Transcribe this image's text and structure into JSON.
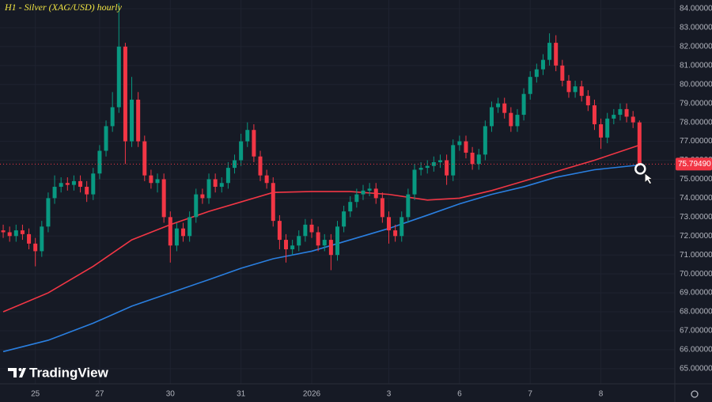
{
  "chart_data": {
    "type": "candlestick",
    "title": "H1 - Silver (XAG/USD) hourly",
    "brand": "TradingView",
    "up_color": "#089981",
    "down_color": "#f23645",
    "grid": true,
    "xlim": [
      -0.5,
      104.5
    ],
    "ylim": [
      64.2,
      84.46
    ],
    "xticks": [
      {
        "value": 5,
        "label": "25"
      },
      {
        "value": 15,
        "label": "27"
      },
      {
        "value": 26,
        "label": "30"
      },
      {
        "value": 37,
        "label": "31"
      },
      {
        "value": 48,
        "label": "2026"
      },
      {
        "value": 60,
        "label": "3"
      },
      {
        "value": 71,
        "label": "6"
      },
      {
        "value": 82,
        "label": "7"
      },
      {
        "value": 93,
        "label": "8"
      }
    ],
    "yticks": [
      {
        "value": 65,
        "label": "65.000000"
      },
      {
        "value": 66,
        "label": "66.000000"
      },
      {
        "value": 67,
        "label": "67.000000"
      },
      {
        "value": 68,
        "label": "68.000000"
      },
      {
        "value": 69,
        "label": "69.000000"
      },
      {
        "value": 70,
        "label": "70.000000"
      },
      {
        "value": 71,
        "label": "71.000000"
      },
      {
        "value": 72,
        "label": "72.000000"
      },
      {
        "value": 73,
        "label": "73.000000"
      },
      {
        "value": 74,
        "label": "74.000000"
      },
      {
        "value": 75,
        "label": "75.000000"
      },
      {
        "value": 76,
        "label": "76.000000"
      },
      {
        "value": 77,
        "label": "77.000000"
      },
      {
        "value": 78,
        "label": "78.000000"
      },
      {
        "value": 79,
        "label": "79.000000"
      },
      {
        "value": 80,
        "label": "80.000000"
      },
      {
        "value": 81,
        "label": "81.000000"
      },
      {
        "value": 82,
        "label": "82.000000"
      },
      {
        "value": 83,
        "label": "83.000000"
      },
      {
        "value": 84,
        "label": "84.000000"
      }
    ],
    "last_price": {
      "value": 75.7949,
      "label": "75.79490"
    },
    "x": [
      0,
      1,
      2,
      3,
      4,
      5,
      6,
      7,
      8,
      9,
      10,
      11,
      12,
      13,
      14,
      15,
      16,
      17,
      18,
      19,
      20,
      21,
      22,
      23,
      24,
      25,
      26,
      27,
      28,
      29,
      30,
      31,
      32,
      33,
      34,
      35,
      36,
      37,
      38,
      39,
      40,
      41,
      42,
      43,
      44,
      45,
      46,
      47,
      48,
      49,
      50,
      51,
      52,
      53,
      54,
      55,
      56,
      57,
      58,
      59,
      60,
      61,
      62,
      63,
      64,
      65,
      66,
      67,
      68,
      69,
      70,
      71,
      72,
      73,
      74,
      75,
      76,
      77,
      78,
      79,
      80,
      81,
      82,
      83,
      84,
      85,
      86,
      87,
      88,
      89,
      90,
      91,
      92,
      93,
      94,
      95,
      96,
      97,
      98,
      99
    ],
    "open": [
      72.3,
      72.2,
      72.0,
      72.3,
      72.1,
      71.6,
      71.2,
      72.5,
      74.0,
      74.6,
      74.8,
      74.7,
      74.9,
      74.6,
      74.2,
      75.3,
      76.5,
      77.8,
      78.8,
      82.0,
      77.0,
      79.2,
      77.0,
      75.2,
      74.8,
      75.0,
      73.0,
      71.5,
      72.4,
      72.0,
      73.0,
      74.2,
      74.0,
      75.0,
      74.6,
      74.8,
      75.6,
      76.0,
      77.0,
      77.6,
      76.2,
      75.2,
      74.8,
      72.8,
      71.8,
      71.3,
      71.5,
      72.0,
      72.6,
      72.2,
      71.5,
      71.8,
      71.0,
      72.5,
      73.3,
      73.8,
      74.2,
      74.4,
      74.5,
      74.0,
      73.0,
      72.3,
      72.0,
      73.0,
      74.2,
      75.5,
      75.6,
      75.7,
      75.9,
      76.0,
      75.2,
      76.8,
      77.0,
      76.4,
      75.8,
      76.3,
      77.8,
      78.8,
      79.0,
      78.5,
      77.8,
      78.4,
      79.5,
      80.4,
      80.8,
      81.3,
      82.2,
      81.0,
      80.2,
      79.6,
      79.9,
      79.4,
      78.9,
      77.9,
      77.2,
      78.2,
      78.4,
      78.7,
      78.3,
      78.0
    ],
    "high": [
      72.6,
      72.5,
      72.6,
      72.6,
      72.4,
      71.9,
      72.8,
      74.3,
      75.2,
      75.1,
      75.1,
      75.2,
      75.2,
      74.9,
      75.6,
      76.8,
      78.1,
      79.6,
      84.3,
      82.2,
      80.4,
      79.6,
      77.3,
      75.5,
      75.3,
      75.3,
      73.3,
      72.7,
      72.7,
      73.3,
      74.5,
      74.5,
      75.3,
      75.3,
      75.1,
      75.9,
      76.3,
      77.4,
      78.0,
      77.9,
      76.5,
      75.5,
      75.1,
      73.1,
      72.1,
      71.8,
      72.3,
      72.9,
      72.9,
      72.5,
      72.1,
      72.1,
      72.8,
      73.6,
      74.1,
      74.5,
      74.7,
      74.8,
      74.8,
      74.3,
      73.3,
      72.6,
      73.3,
      74.5,
      75.8,
      75.9,
      76.0,
      76.2,
      76.3,
      76.3,
      77.1,
      77.3,
      77.3,
      76.7,
      76.6,
      78.1,
      79.1,
      79.3,
      79.3,
      78.8,
      78.7,
      79.8,
      80.7,
      81.1,
      81.6,
      82.7,
      82.6,
      81.3,
      80.5,
      80.2,
      80.2,
      79.7,
      79.2,
      78.2,
      78.5,
      78.7,
      79.0,
      79.0,
      78.6,
      78.1
    ],
    "low": [
      71.9,
      71.7,
      71.7,
      71.8,
      71.3,
      70.4,
      70.9,
      72.2,
      73.7,
      74.3,
      74.4,
      74.4,
      74.3,
      73.8,
      73.9,
      75.0,
      76.2,
      77.5,
      78.5,
      75.8,
      76.7,
      76.7,
      74.9,
      74.5,
      74.3,
      72.7,
      70.6,
      71.2,
      71.7,
      71.7,
      72.7,
      73.7,
      73.7,
      74.3,
      74.3,
      74.5,
      75.3,
      75.7,
      76.7,
      75.9,
      74.9,
      74.5,
      72.5,
      71.3,
      70.6,
      71.0,
      71.2,
      71.7,
      71.9,
      71.2,
      71.2,
      70.2,
      70.7,
      72.2,
      73.0,
      73.5,
      73.9,
      74.1,
      73.7,
      72.7,
      71.6,
      71.7,
      71.7,
      72.7,
      73.9,
      75.2,
      75.3,
      75.4,
      75.6,
      74.7,
      74.9,
      76.5,
      76.1,
      75.5,
      75.5,
      76.0,
      77.5,
      78.5,
      78.2,
      77.5,
      77.5,
      78.1,
      79.2,
      80.1,
      80.5,
      81.0,
      80.7,
      79.9,
      79.3,
      79.3,
      79.1,
      78.6,
      77.6,
      76.6,
      76.9,
      77.9,
      78.1,
      78.0,
      77.7,
      75.7
    ],
    "close": [
      72.2,
      72.0,
      72.3,
      72.1,
      71.6,
      71.2,
      72.5,
      74.0,
      74.6,
      74.8,
      74.7,
      74.9,
      74.6,
      74.2,
      75.3,
      76.5,
      77.8,
      78.8,
      82.0,
      77.0,
      79.2,
      77.0,
      75.2,
      74.8,
      75.0,
      73.0,
      71.5,
      72.4,
      72.0,
      73.0,
      74.2,
      74.0,
      75.0,
      74.6,
      74.8,
      75.6,
      76.0,
      77.0,
      77.6,
      76.2,
      75.2,
      74.8,
      72.8,
      71.8,
      71.3,
      71.5,
      72.0,
      72.6,
      72.2,
      71.5,
      71.8,
      71.0,
      72.5,
      73.3,
      73.8,
      74.2,
      74.4,
      74.5,
      74.0,
      73.0,
      72.3,
      72.0,
      73.0,
      74.2,
      75.5,
      75.6,
      75.7,
      75.9,
      76.0,
      75.2,
      76.8,
      77.0,
      76.4,
      75.8,
      76.3,
      77.8,
      78.8,
      79.0,
      78.5,
      77.8,
      78.4,
      79.5,
      80.4,
      80.8,
      81.3,
      82.2,
      81.0,
      80.2,
      79.6,
      79.9,
      79.4,
      78.9,
      77.9,
      77.2,
      78.2,
      78.4,
      78.7,
      78.3,
      78.0,
      75.7949
    ],
    "lines": [
      {
        "color": "#f23645",
        "x": [
          0,
          7,
          14,
          20,
          26,
          32,
          37,
          42,
          48,
          54,
          60,
          66,
          71,
          76,
          81,
          86,
          92,
          99
        ],
        "values": [
          68.0,
          69.0,
          70.4,
          71.8,
          72.6,
          73.3,
          73.8,
          74.3,
          74.35,
          74.35,
          74.2,
          73.9,
          74.0,
          74.4,
          74.9,
          75.4,
          76.0,
          76.8
        ]
      },
      {
        "color": "#2a7fe0",
        "x": [
          0,
          7,
          14,
          20,
          26,
          32,
          37,
          42,
          48,
          54,
          60,
          66,
          71,
          76,
          81,
          86,
          92,
          99
        ],
        "values": [
          65.9,
          66.5,
          67.4,
          68.3,
          69.0,
          69.7,
          70.3,
          70.8,
          71.2,
          71.8,
          72.4,
          73.1,
          73.7,
          74.2,
          74.6,
          75.1,
          75.5,
          75.75
        ]
      }
    ]
  }
}
